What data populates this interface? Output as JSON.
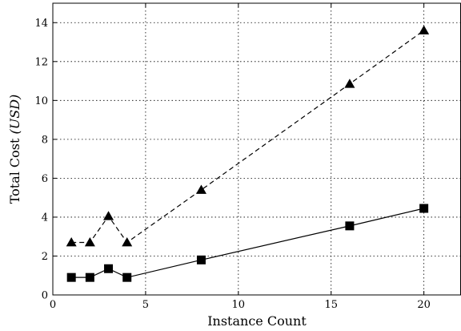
{
  "chart_data": {
    "type": "line",
    "xlabel": "Instance Count",
    "ylabel_prefix": "Total Cost ",
    "ylabel_unit": "(USD)",
    "xlim": [
      0,
      22
    ],
    "ylim": [
      0,
      15
    ],
    "grid": true,
    "x_ticks": [
      0,
      5,
      10,
      15,
      20
    ],
    "y_ticks": [
      0,
      2,
      4,
      6,
      8,
      10,
      12,
      14
    ],
    "series": [
      {
        "marker": "triangle",
        "line_style": "dashed",
        "color": "#000000",
        "x": [
          1,
          2,
          3,
          4,
          8,
          16,
          20
        ],
        "y": [
          2.7,
          2.7,
          4.05,
          2.7,
          5.4,
          10.85,
          13.6
        ]
      },
      {
        "marker": "square",
        "line_style": "solid",
        "color": "#000000",
        "x": [
          1,
          2,
          3,
          4,
          8,
          16,
          20
        ],
        "y": [
          0.9,
          0.9,
          1.35,
          0.9,
          1.8,
          3.55,
          4.45
        ]
      }
    ]
  }
}
